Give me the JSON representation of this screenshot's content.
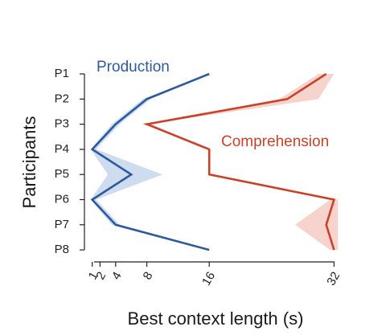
{
  "chart_data": {
    "type": "line",
    "orientation": "horizontal-x-value",
    "xlabel": "Best context length (s)",
    "ylabel": "Participants",
    "x_ticks": [
      1,
      2,
      4,
      8,
      16,
      32
    ],
    "xlim": [
      0,
      32
    ],
    "categories": [
      "P1",
      "P2",
      "P3",
      "P4",
      "P5",
      "P6",
      "P7",
      "P8"
    ],
    "grid": false,
    "series": [
      {
        "name": "Production",
        "color": "#2e5a9c",
        "band_color": "#bcd0ea",
        "values": [
          16,
          8,
          4,
          1,
          6,
          1,
          4,
          16
        ],
        "band_low": [
          16,
          7.5,
          3.5,
          0.8,
          3,
          0.8,
          3.5,
          16
        ],
        "band_high": [
          16,
          8.5,
          4.5,
          1.5,
          10,
          1.5,
          4.5,
          16
        ]
      },
      {
        "name": "Comprehension",
        "color": "#c8432a",
        "band_color": "#f3c4bc",
        "values": [
          31,
          26,
          8,
          16,
          16,
          32,
          31,
          32
        ],
        "band_low": [
          30,
          25,
          8.5,
          16,
          16,
          31.5,
          27,
          31.5
        ],
        "band_high": [
          32,
          30,
          8,
          16,
          16,
          32.5,
          32.5,
          32.5
        ]
      }
    ]
  }
}
